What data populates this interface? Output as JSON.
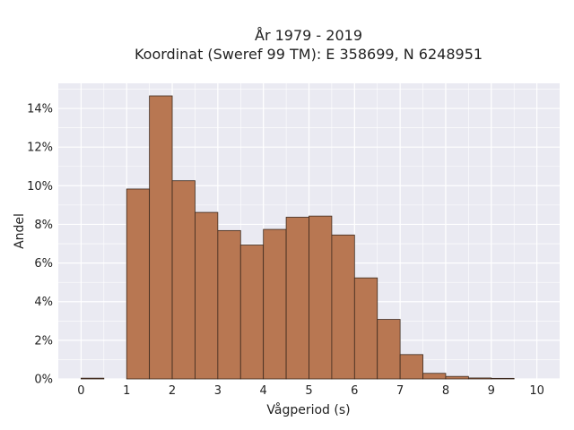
{
  "chart_data": {
    "type": "bar",
    "title_line1": "År 1979 - 2019",
    "title_line2": "Koordinat (Sweref 99 TM): E 358699, N 6248951",
    "xlabel": "Vågperiod (s)",
    "ylabel": "Andel",
    "xlim": [
      -0.5,
      10.5
    ],
    "ylim": [
      0,
      0.153
    ],
    "xticks": [
      "0",
      "1",
      "2",
      "3",
      "4",
      "5",
      "6",
      "7",
      "8",
      "9",
      "10"
    ],
    "yticks": [
      "0%",
      "2%",
      "4%",
      "6%",
      "8%",
      "10%",
      "12%",
      "14%"
    ],
    "bin_width": 0.5,
    "bins": [
      {
        "x0": 0.0,
        "value": 0.0004
      },
      {
        "x0": 1.0,
        "value": 0.0983
      },
      {
        "x0": 1.5,
        "value": 0.1465
      },
      {
        "x0": 2.0,
        "value": 0.1026
      },
      {
        "x0": 2.5,
        "value": 0.0862
      },
      {
        "x0": 3.0,
        "value": 0.0768
      },
      {
        "x0": 3.5,
        "value": 0.0693
      },
      {
        "x0": 4.0,
        "value": 0.0774
      },
      {
        "x0": 4.5,
        "value": 0.0837
      },
      {
        "x0": 5.0,
        "value": 0.0843
      },
      {
        "x0": 5.5,
        "value": 0.0745
      },
      {
        "x0": 6.0,
        "value": 0.0523
      },
      {
        "x0": 6.5,
        "value": 0.0308
      },
      {
        "x0": 7.0,
        "value": 0.0126
      },
      {
        "x0": 7.5,
        "value": 0.0029
      },
      {
        "x0": 8.0,
        "value": 0.0013
      },
      {
        "x0": 8.5,
        "value": 0.0005
      },
      {
        "x0": 9.0,
        "value": 0.0003
      }
    ],
    "grid": true,
    "colors": {
      "bar_fill": "#b87752",
      "bar_edge": "#3d2a1e",
      "plot_bg": "#eaeaf2",
      "grid": "#ffffff"
    }
  }
}
